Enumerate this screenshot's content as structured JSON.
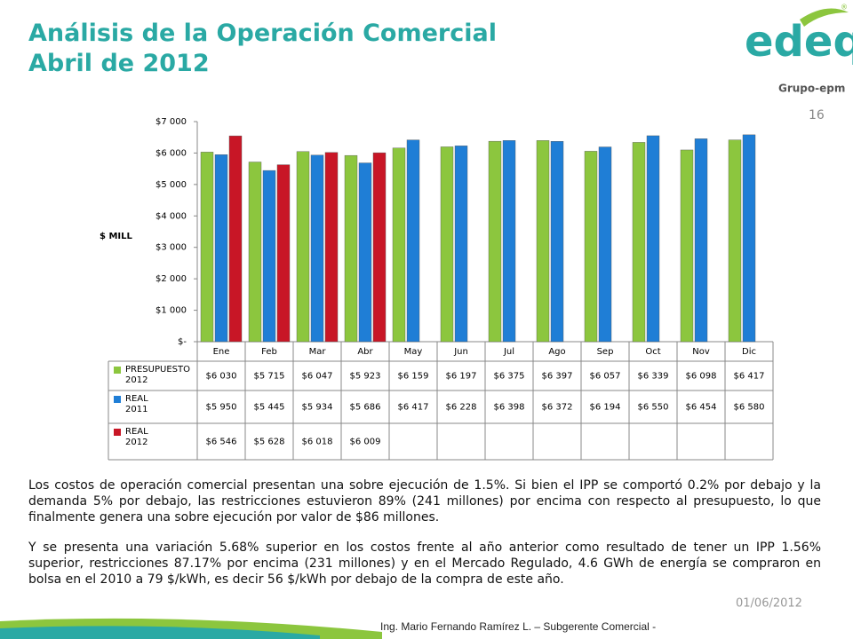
{
  "slide": {
    "title_lines": [
      "Análisis de la Operación Comercial",
      "Abril de 2012"
    ],
    "logo": {
      "brand": "edeq",
      "group": "Grupo-epm",
      "mark": "®"
    },
    "page_number": "16",
    "paragraphs": [
      "Los costos de operación comercial presentan una sobre ejecución de 1.5%.  Si bien el IPP se comportó 0.2% por debajo y la demanda 5% por debajo, las restricciones estuvieron 89% (241 millones) por encima con respecto al presupuesto, lo que finalmente genera una sobre ejecución por valor de $86 millones.",
      "Y se presenta una variación 5.68% superior en los costos frente al año anterior como resultado de tener un IPP 1.56% superior, restricciones 87.17% por encima (231 millones) y en el Mercado Regulado, 4.6 GWh de energía se compraron en bolsa en el 2010 a 79 $/kWh, es decir 56 $/kWh por debajo de la compra de este año."
    ],
    "date": "01/06/2012",
    "footer": "Ing. Mario Fernando Ramírez L. – Subgerente Comercial -"
  },
  "chart_data": {
    "type": "bar",
    "ylabel": "$ MILL",
    "categories": [
      "Ene",
      "Feb",
      "Mar",
      "Abr",
      "May",
      "Jun",
      "Jul",
      "Ago",
      "Sep",
      "Oct",
      "Nov",
      "Dic"
    ],
    "series": [
      {
        "name": "PRESUPUESTO\n2012",
        "color": "#8cc63e",
        "values": [
          6030,
          5715,
          6047,
          5923,
          6159,
          6197,
          6375,
          6397,
          6057,
          6339,
          6098,
          6417
        ],
        "value_labels": [
          "$6 030",
          "$5 715",
          "$6 047",
          "$5 923",
          "$6 159",
          "$6 197",
          "$6 375",
          "$6 397",
          "$6 057",
          "$6 339",
          "$6 098",
          "$6 417"
        ]
      },
      {
        "name": "REAL\n2011",
        "color": "#1f7ed6",
        "values": [
          5950,
          5445,
          5934,
          5686,
          6417,
          6228,
          6398,
          6372,
          6194,
          6550,
          6454,
          6580
        ],
        "value_labels": [
          "$5 950",
          "$5 445",
          "$5 934",
          "$5 686",
          "$6 417",
          "$6 228",
          "$6 398",
          "$6 372",
          "$6 194",
          "$6 550",
          "$6 454",
          "$6 580"
        ]
      },
      {
        "name": "REAL\n2012",
        "color": "#c81626",
        "values": [
          6546,
          5628,
          6018,
          6009,
          null,
          null,
          null,
          null,
          null,
          null,
          null,
          null
        ],
        "value_labels": [
          "$6 546",
          "$5 628",
          "$6 018",
          "$6 009",
          null,
          null,
          null,
          null,
          null,
          null,
          null,
          null
        ]
      }
    ],
    "ylim": [
      0,
      7000
    ],
    "yticks": [
      {
        "value": 0,
        "label": "$-"
      },
      {
        "value": 1000,
        "label": "$1 000"
      },
      {
        "value": 2000,
        "label": "$2 000"
      },
      {
        "value": 3000,
        "label": "$3 000"
      },
      {
        "value": 4000,
        "label": "$4 000"
      },
      {
        "value": 5000,
        "label": "$5 000"
      },
      {
        "value": 6000,
        "label": "$6 000"
      },
      {
        "value": 7000,
        "label": "$7 000"
      }
    ],
    "grid": false
  }
}
